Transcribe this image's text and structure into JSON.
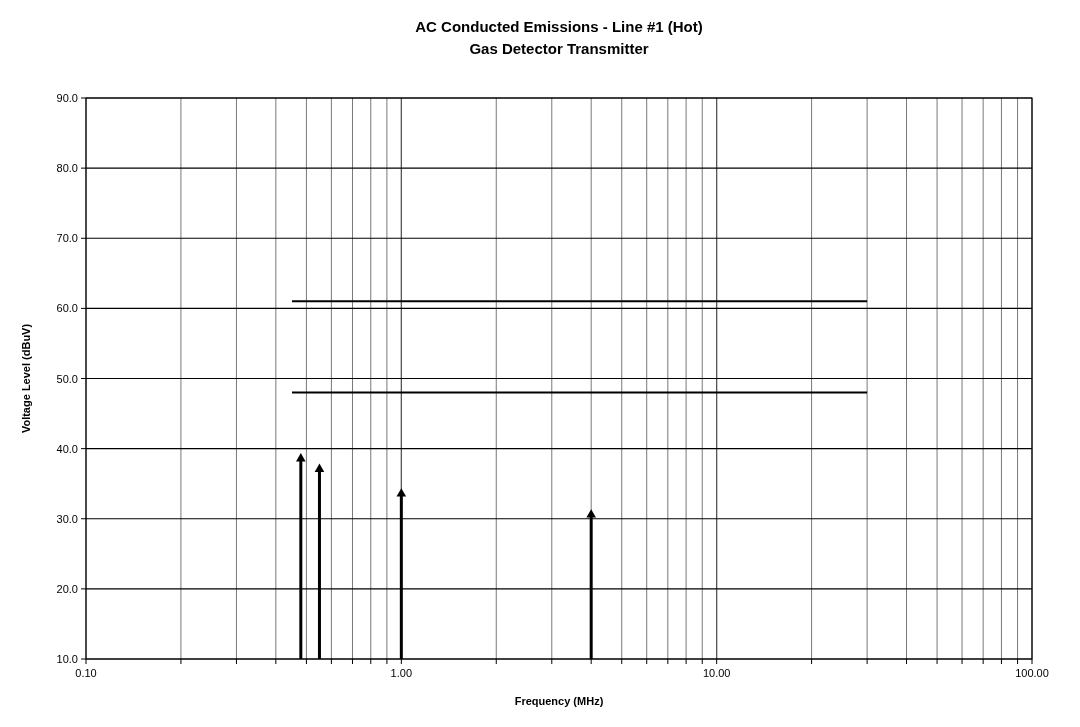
{
  "chart_data": {
    "type": "line",
    "title": "AC Conducted Emissions - Line #1 (Hot)",
    "subtitle": "Gas Detector Transmitter",
    "xlabel": "Frequency (MHz)",
    "ylabel": "Voltage Level (dBuV)",
    "log": "x",
    "grid": true,
    "line_style": "solid",
    "xlim": [
      0.1,
      100
    ],
    "ylim": [
      10,
      90
    ],
    "xticks": [
      {
        "value": 0.1,
        "label": "0.10"
      },
      {
        "value": 0.2,
        "label": null
      },
      {
        "value": 0.3,
        "label": null
      },
      {
        "value": 0.4,
        "label": null
      },
      {
        "value": 0.5,
        "label": null
      },
      {
        "value": 0.6,
        "label": null
      },
      {
        "value": 0.7,
        "label": null
      },
      {
        "value": 0.8,
        "label": null
      },
      {
        "value": 0.9,
        "label": null
      },
      {
        "value": 1,
        "label": "1.00"
      },
      {
        "value": 2,
        "label": null
      },
      {
        "value": 3,
        "label": null
      },
      {
        "value": 4,
        "label": null
      },
      {
        "value": 5,
        "label": null
      },
      {
        "value": 6,
        "label": null
      },
      {
        "value": 7,
        "label": null
      },
      {
        "value": 8,
        "label": null
      },
      {
        "value": 9,
        "label": null
      },
      {
        "value": 10,
        "label": "10.00"
      },
      {
        "value": 20,
        "label": null
      },
      {
        "value": 30,
        "label": null
      },
      {
        "value": 40,
        "label": null
      },
      {
        "value": 50,
        "label": null
      },
      {
        "value": 60,
        "label": null
      },
      {
        "value": 70,
        "label": null
      },
      {
        "value": 80,
        "label": null
      },
      {
        "value": 90,
        "label": null
      },
      {
        "value": 100,
        "label": "100.00"
      }
    ],
    "yticks": [
      {
        "value": 10,
        "label": "10.0"
      },
      {
        "value": 20,
        "label": "20.0"
      },
      {
        "value": 30,
        "label": "30.0"
      },
      {
        "value": 40,
        "label": "40.0"
      },
      {
        "value": 50,
        "label": "50.0"
      },
      {
        "value": 60,
        "label": "60.0"
      },
      {
        "value": 70,
        "label": "70.0"
      },
      {
        "value": 80,
        "label": "80.0"
      },
      {
        "value": 90,
        "label": "90.0"
      }
    ],
    "series": [
      {
        "color": "#000000",
        "x": [
          0.45,
          30
        ],
        "values": [
          61,
          61
        ]
      },
      {
        "color": "#000000",
        "x": [
          0.45,
          30
        ],
        "values": [
          48,
          48
        ]
      },
      {
        "type": "lollipop",
        "marker": "triangle",
        "color": "#000000",
        "x": [
          0.48,
          0.55,
          1.0,
          4.0
        ],
        "values": [
          39,
          37.5,
          34,
          31
        ]
      }
    ]
  }
}
